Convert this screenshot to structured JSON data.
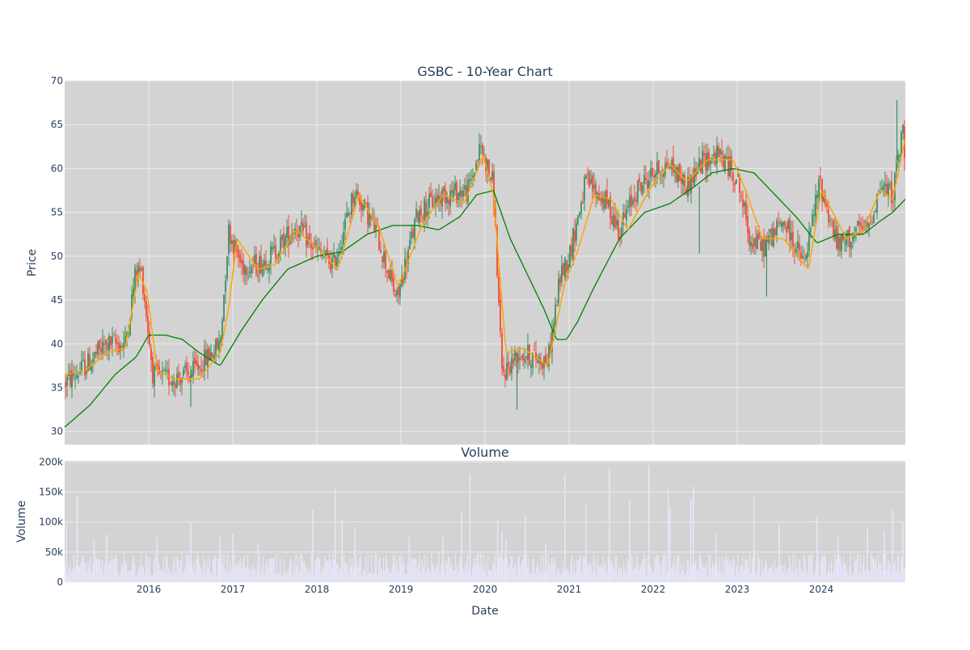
{
  "chart_data": [
    {
      "type": "candlestick",
      "title": "GSBC - 10-Year Chart",
      "xlabel": "",
      "ylabel": "Price",
      "ylim": [
        28.5,
        70
      ],
      "yticks": [
        30,
        35,
        40,
        45,
        50,
        55,
        60,
        65,
        70
      ],
      "xlim": [
        2015.0,
        2025.0
      ],
      "grid": true,
      "legend": "none",
      "colors": {
        "background": "#d3d3d3",
        "grid": "#ececec",
        "up": "#3d8f63",
        "down": "#ef4d3c",
        "ma_short": "#ffa500",
        "ma_long": "#008000"
      },
      "price_path": {
        "x": [
          2015.0,
          2015.25,
          2015.5,
          2015.72,
          2015.85,
          2015.92,
          2016.05,
          2016.2,
          2016.5,
          2016.75,
          2016.85,
          2016.95,
          2017.1,
          2017.3,
          2017.5,
          2017.75,
          2018.0,
          2018.2,
          2018.45,
          2018.7,
          2018.95,
          2019.2,
          2019.5,
          2019.8,
          2019.95,
          2020.1,
          2020.2,
          2020.4,
          2020.75,
          2020.9,
          2021.0,
          2021.2,
          2021.45,
          2021.6,
          2021.8,
          2022.0,
          2022.2,
          2022.4,
          2022.6,
          2022.8,
          2023.0,
          2023.15,
          2023.3,
          2023.55,
          2023.8,
          2023.98,
          2024.2,
          2024.45,
          2024.55,
          2024.7,
          2024.85,
          2024.97,
          2025.0
        ],
        "y": [
          35.5,
          37.5,
          40.0,
          40.0,
          48.5,
          48.0,
          36.5,
          36.0,
          36.5,
          39.0,
          40.0,
          53.0,
          49.0,
          49.0,
          50.5,
          53.5,
          50.5,
          49.0,
          57.5,
          53.0,
          45.0,
          55.0,
          57.0,
          57.5,
          62.5,
          58.0,
          36.5,
          39.0,
          38.0,
          48.0,
          50.0,
          58.5,
          56.0,
          53.0,
          57.5,
          59.5,
          60.5,
          58.0,
          61.0,
          61.5,
          59.0,
          52.0,
          51.0,
          54.0,
          49.0,
          58.5,
          51.0,
          53.0,
          53.0,
          58.0,
          57.0,
          64.5,
          60.0
        ]
      },
      "ma_short_path": {
        "x": [
          2015.0,
          2015.25,
          2015.5,
          2015.72,
          2015.88,
          2015.98,
          2016.1,
          2016.3,
          2016.6,
          2016.85,
          2016.95,
          2017.05,
          2017.3,
          2017.5,
          2017.75,
          2018.0,
          2018.25,
          2018.5,
          2018.75,
          2018.97,
          2019.25,
          2019.5,
          2019.75,
          2019.98,
          2020.1,
          2020.25,
          2020.45,
          2020.75,
          2020.95,
          2021.1,
          2021.3,
          2021.5,
          2021.7,
          2021.95,
          2022.2,
          2022.4,
          2022.65,
          2022.95,
          2023.1,
          2023.3,
          2023.55,
          2023.85,
          2024.0,
          2024.3,
          2024.5,
          2024.7,
          2024.85,
          2025.0
        ],
        "y": [
          36.5,
          37.0,
          39.0,
          39.5,
          48.0,
          46.0,
          37.0,
          36.0,
          36.0,
          39.0,
          44.0,
          52.0,
          48.5,
          49.0,
          53.0,
          51.0,
          48.5,
          57.0,
          53.0,
          46.5,
          53.5,
          57.0,
          56.0,
          61.5,
          57.0,
          39.0,
          39.5,
          37.5,
          47.0,
          50.5,
          57.0,
          56.5,
          53.0,
          57.5,
          60.5,
          58.5,
          61.0,
          61.0,
          57.5,
          52.0,
          52.0,
          48.5,
          57.5,
          52.0,
          53.0,
          57.5,
          56.5,
          63.5
        ]
      },
      "ma_long_path": {
        "x": [
          2015.0,
          2015.3,
          2015.6,
          2015.85,
          2016.0,
          2016.2,
          2016.4,
          2016.6,
          2016.85,
          2017.1,
          2017.35,
          2017.65,
          2018.0,
          2018.3,
          2018.6,
          2018.9,
          2019.2,
          2019.45,
          2019.7,
          2019.9,
          2020.1,
          2020.3,
          2020.5,
          2020.7,
          2020.85,
          2020.97,
          2021.1,
          2021.3,
          2021.6,
          2021.9,
          2022.2,
          2022.5,
          2022.7,
          2022.95,
          2023.2,
          2023.45,
          2023.7,
          2023.95,
          2024.2,
          2024.5,
          2024.7,
          2024.85,
          2025.0
        ],
        "y": [
          30.5,
          33.0,
          36.5,
          38.5,
          41.0,
          41.0,
          40.5,
          39.0,
          37.5,
          41.5,
          45.0,
          48.5,
          50.0,
          50.5,
          52.5,
          53.5,
          53.5,
          53.0,
          54.5,
          57.0,
          57.5,
          52.0,
          48.0,
          44.0,
          40.5,
          40.5,
          42.5,
          46.5,
          52.0,
          55.0,
          56.0,
          58.0,
          59.5,
          60.0,
          59.5,
          57.0,
          54.5,
          51.5,
          52.5,
          52.5,
          54.0,
          55.0,
          56.5
        ]
      },
      "x_tick_labels": [
        "2016",
        "2017",
        "2018",
        "2019",
        "2020",
        "2021",
        "2022",
        "2023",
        "2024"
      ]
    },
    {
      "type": "bar",
      "title": "Volume",
      "xlabel": "Date",
      "ylabel": "Volume",
      "ylim": [
        0,
        202000
      ],
      "ytick_values": [
        0,
        50000,
        100000,
        150000,
        200000
      ],
      "ytick_labels": [
        "0",
        "50k",
        "100k",
        "150k",
        "200k"
      ],
      "xlim": [
        2015.0,
        2025.0
      ],
      "grid": true,
      "colors": {
        "bar": "#e6e6fa"
      },
      "baseline": 30000,
      "spikes": {
        "x": [
          2015.02,
          2015.15,
          2015.35,
          2015.5,
          2016.1,
          2016.5,
          2016.85,
          2017.0,
          2017.3,
          2017.95,
          2018.22,
          2018.3,
          2018.45,
          2019.1,
          2019.5,
          2019.72,
          2019.82,
          2020.15,
          2020.2,
          2020.25,
          2020.48,
          2020.72,
          2020.95,
          2021.2,
          2021.48,
          2021.72,
          2021.95,
          2022.18,
          2022.2,
          2022.45,
          2022.48,
          2022.75,
          2023.2,
          2023.5,
          2023.95,
          2024.2,
          2024.55,
          2024.75,
          2024.85,
          2024.97
        ],
        "values": [
          100000,
          145000,
          70000,
          80000,
          75000,
          100000,
          75000,
          80000,
          65000,
          120000,
          158000,
          105000,
          90000,
          75000,
          78000,
          115000,
          180000,
          105000,
          85000,
          70000,
          110000,
          65000,
          180000,
          130000,
          190000,
          135000,
          195000,
          155000,
          125000,
          140000,
          160000,
          80000,
          143000,
          95000,
          110000,
          75000,
          90000,
          85000,
          120000,
          100000
        ]
      },
      "x_tick_labels": [
        "2016",
        "2017",
        "2018",
        "2019",
        "2020",
        "2021",
        "2022",
        "2023",
        "2024"
      ]
    }
  ]
}
